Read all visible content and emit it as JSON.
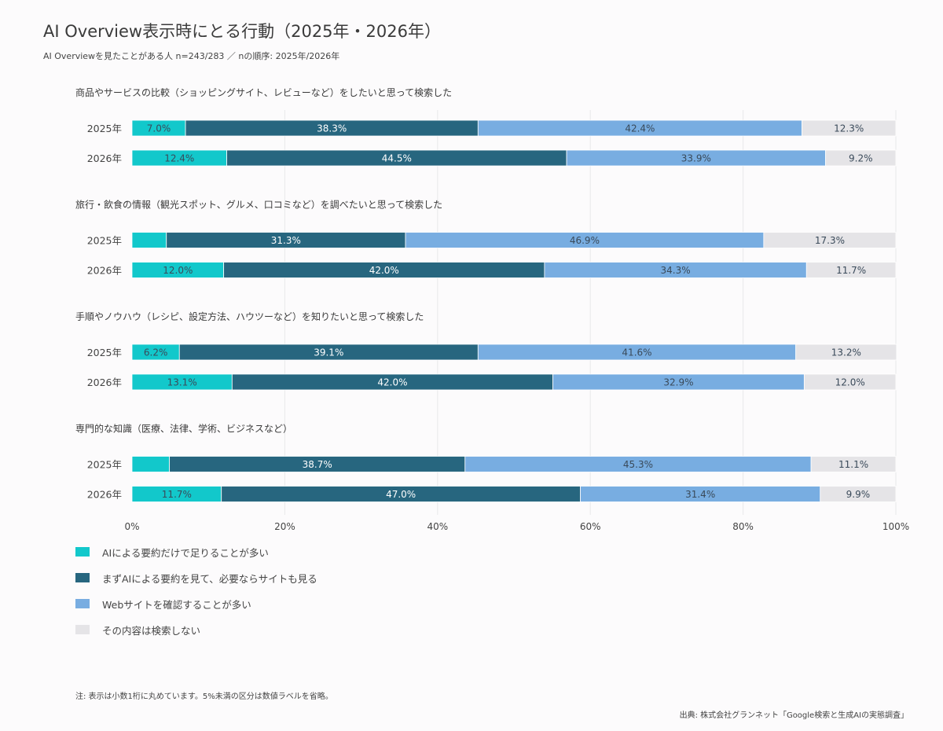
{
  "title": "AI Overview表示時にとる行動（2025年・2026年）",
  "subtitle": "AI Overviewを見たことがある人 n=243/283 ／ nの順序: 2025年/2026年",
  "footnote": "注: 表示は小数1桁に丸めています。5%未満の区分は数値ラベルを省略。",
  "source": "出典: 株式会社グランネット「Google検索と生成AIの実態調査」",
  "colors": {
    "summary_only": "#12c8cb",
    "summary_then_site": "#27667f",
    "website": "#78ade1",
    "no_search": "#e5e4e7",
    "grid": "#e8e8ea",
    "label_dark": "#ffffff",
    "label_light": "#3a4a5a"
  },
  "chart_data": {
    "type": "bar",
    "orientation": "horizontal",
    "stacked": true,
    "xlim": [
      0,
      100
    ],
    "x_ticks": [
      "0%",
      "20%",
      "40%",
      "60%",
      "80%",
      "100%"
    ],
    "grid": true,
    "legend_position": "bottom-left",
    "series": [
      {
        "key": "summary_only",
        "name": "AIによる要約だけで足りることが多い"
      },
      {
        "key": "summary_then_site",
        "name": "まずAIによる要約を見て、必要ならサイトも見る"
      },
      {
        "key": "website",
        "name": "Webサイトを確認することが多い"
      },
      {
        "key": "no_search",
        "name": "その内容は検索しない"
      }
    ],
    "groups": [
      {
        "label": "商品やサービスの比較（ショッピングサイト、レビューなど）をしたいと思って検索した",
        "rows": [
          {
            "year": "2025年",
            "values": [
              7.0,
              38.3,
              42.4,
              12.3
            ],
            "labels": [
              "7.0%",
              "38.3%",
              "42.4%",
              "12.3%"
            ]
          },
          {
            "year": "2026年",
            "values": [
              12.4,
              44.5,
              33.9,
              9.2
            ],
            "labels": [
              "12.4%",
              "44.5%",
              "33.9%",
              "9.2%"
            ]
          }
        ]
      },
      {
        "label": "旅行・飲食の情報（観光スポット、グルメ、口コミなど）を調べたいと思って検索した",
        "rows": [
          {
            "year": "2025年",
            "values": [
              4.5,
              31.3,
              46.9,
              17.3
            ],
            "labels": [
              "",
              "31.3%",
              "46.9%",
              "17.3%"
            ]
          },
          {
            "year": "2026年",
            "values": [
              12.0,
              42.0,
              34.3,
              11.7
            ],
            "labels": [
              "12.0%",
              "42.0%",
              "34.3%",
              "11.7%"
            ]
          }
        ]
      },
      {
        "label": "手順やノウハウ（レシピ、設定方法、ハウツーなど）を知りたいと思って検索した",
        "rows": [
          {
            "year": "2025年",
            "values": [
              6.2,
              39.1,
              41.6,
              13.2
            ],
            "labels": [
              "6.2%",
              "39.1%",
              "41.6%",
              "13.2%"
            ]
          },
          {
            "year": "2026年",
            "values": [
              13.1,
              42.0,
              32.9,
              12.0
            ],
            "labels": [
              "13.1%",
              "42.0%",
              "32.9%",
              "12.0%"
            ]
          }
        ]
      },
      {
        "label": "専門的な知識（医療、法律、学術、ビジネスなど）",
        "rows": [
          {
            "year": "2025年",
            "values": [
              4.9,
              38.7,
              45.3,
              11.1
            ],
            "labels": [
              "",
              "38.7%",
              "45.3%",
              "11.1%"
            ]
          },
          {
            "year": "2026年",
            "values": [
              11.7,
              47.0,
              31.4,
              9.9
            ],
            "labels": [
              "11.7%",
              "47.0%",
              "31.4%",
              "9.9%"
            ]
          }
        ]
      }
    ]
  }
}
